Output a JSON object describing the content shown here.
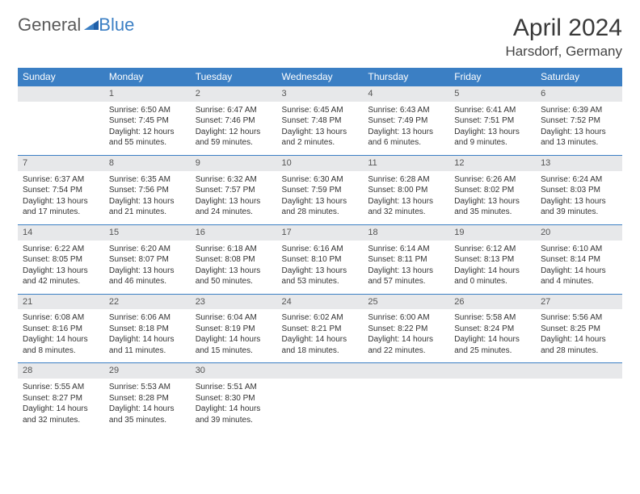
{
  "logo": {
    "part1": "General",
    "part2": "Blue"
  },
  "title": {
    "month": "April 2024",
    "location": "Harsdorf, Germany"
  },
  "colors": {
    "header_bg": "#3b7fc4",
    "daynum_bg": "#e7e8ea",
    "border": "#3b7fc4"
  },
  "weekdays": [
    "Sunday",
    "Monday",
    "Tuesday",
    "Wednesday",
    "Thursday",
    "Friday",
    "Saturday"
  ],
  "weeks": [
    [
      {
        "n": "",
        "lines": []
      },
      {
        "n": "1",
        "lines": [
          "Sunrise: 6:50 AM",
          "Sunset: 7:45 PM",
          "Daylight: 12 hours",
          "and 55 minutes."
        ]
      },
      {
        "n": "2",
        "lines": [
          "Sunrise: 6:47 AM",
          "Sunset: 7:46 PM",
          "Daylight: 12 hours",
          "and 59 minutes."
        ]
      },
      {
        "n": "3",
        "lines": [
          "Sunrise: 6:45 AM",
          "Sunset: 7:48 PM",
          "Daylight: 13 hours",
          "and 2 minutes."
        ]
      },
      {
        "n": "4",
        "lines": [
          "Sunrise: 6:43 AM",
          "Sunset: 7:49 PM",
          "Daylight: 13 hours",
          "and 6 minutes."
        ]
      },
      {
        "n": "5",
        "lines": [
          "Sunrise: 6:41 AM",
          "Sunset: 7:51 PM",
          "Daylight: 13 hours",
          "and 9 minutes."
        ]
      },
      {
        "n": "6",
        "lines": [
          "Sunrise: 6:39 AM",
          "Sunset: 7:52 PM",
          "Daylight: 13 hours",
          "and 13 minutes."
        ]
      }
    ],
    [
      {
        "n": "7",
        "lines": [
          "Sunrise: 6:37 AM",
          "Sunset: 7:54 PM",
          "Daylight: 13 hours",
          "and 17 minutes."
        ]
      },
      {
        "n": "8",
        "lines": [
          "Sunrise: 6:35 AM",
          "Sunset: 7:56 PM",
          "Daylight: 13 hours",
          "and 21 minutes."
        ]
      },
      {
        "n": "9",
        "lines": [
          "Sunrise: 6:32 AM",
          "Sunset: 7:57 PM",
          "Daylight: 13 hours",
          "and 24 minutes."
        ]
      },
      {
        "n": "10",
        "lines": [
          "Sunrise: 6:30 AM",
          "Sunset: 7:59 PM",
          "Daylight: 13 hours",
          "and 28 minutes."
        ]
      },
      {
        "n": "11",
        "lines": [
          "Sunrise: 6:28 AM",
          "Sunset: 8:00 PM",
          "Daylight: 13 hours",
          "and 32 minutes."
        ]
      },
      {
        "n": "12",
        "lines": [
          "Sunrise: 6:26 AM",
          "Sunset: 8:02 PM",
          "Daylight: 13 hours",
          "and 35 minutes."
        ]
      },
      {
        "n": "13",
        "lines": [
          "Sunrise: 6:24 AM",
          "Sunset: 8:03 PM",
          "Daylight: 13 hours",
          "and 39 minutes."
        ]
      }
    ],
    [
      {
        "n": "14",
        "lines": [
          "Sunrise: 6:22 AM",
          "Sunset: 8:05 PM",
          "Daylight: 13 hours",
          "and 42 minutes."
        ]
      },
      {
        "n": "15",
        "lines": [
          "Sunrise: 6:20 AM",
          "Sunset: 8:07 PM",
          "Daylight: 13 hours",
          "and 46 minutes."
        ]
      },
      {
        "n": "16",
        "lines": [
          "Sunrise: 6:18 AM",
          "Sunset: 8:08 PM",
          "Daylight: 13 hours",
          "and 50 minutes."
        ]
      },
      {
        "n": "17",
        "lines": [
          "Sunrise: 6:16 AM",
          "Sunset: 8:10 PM",
          "Daylight: 13 hours",
          "and 53 minutes."
        ]
      },
      {
        "n": "18",
        "lines": [
          "Sunrise: 6:14 AM",
          "Sunset: 8:11 PM",
          "Daylight: 13 hours",
          "and 57 minutes."
        ]
      },
      {
        "n": "19",
        "lines": [
          "Sunrise: 6:12 AM",
          "Sunset: 8:13 PM",
          "Daylight: 14 hours",
          "and 0 minutes."
        ]
      },
      {
        "n": "20",
        "lines": [
          "Sunrise: 6:10 AM",
          "Sunset: 8:14 PM",
          "Daylight: 14 hours",
          "and 4 minutes."
        ]
      }
    ],
    [
      {
        "n": "21",
        "lines": [
          "Sunrise: 6:08 AM",
          "Sunset: 8:16 PM",
          "Daylight: 14 hours",
          "and 8 minutes."
        ]
      },
      {
        "n": "22",
        "lines": [
          "Sunrise: 6:06 AM",
          "Sunset: 8:18 PM",
          "Daylight: 14 hours",
          "and 11 minutes."
        ]
      },
      {
        "n": "23",
        "lines": [
          "Sunrise: 6:04 AM",
          "Sunset: 8:19 PM",
          "Daylight: 14 hours",
          "and 15 minutes."
        ]
      },
      {
        "n": "24",
        "lines": [
          "Sunrise: 6:02 AM",
          "Sunset: 8:21 PM",
          "Daylight: 14 hours",
          "and 18 minutes."
        ]
      },
      {
        "n": "25",
        "lines": [
          "Sunrise: 6:00 AM",
          "Sunset: 8:22 PM",
          "Daylight: 14 hours",
          "and 22 minutes."
        ]
      },
      {
        "n": "26",
        "lines": [
          "Sunrise: 5:58 AM",
          "Sunset: 8:24 PM",
          "Daylight: 14 hours",
          "and 25 minutes."
        ]
      },
      {
        "n": "27",
        "lines": [
          "Sunrise: 5:56 AM",
          "Sunset: 8:25 PM",
          "Daylight: 14 hours",
          "and 28 minutes."
        ]
      }
    ],
    [
      {
        "n": "28",
        "lines": [
          "Sunrise: 5:55 AM",
          "Sunset: 8:27 PM",
          "Daylight: 14 hours",
          "and 32 minutes."
        ]
      },
      {
        "n": "29",
        "lines": [
          "Sunrise: 5:53 AM",
          "Sunset: 8:28 PM",
          "Daylight: 14 hours",
          "and 35 minutes."
        ]
      },
      {
        "n": "30",
        "lines": [
          "Sunrise: 5:51 AM",
          "Sunset: 8:30 PM",
          "Daylight: 14 hours",
          "and 39 minutes."
        ]
      },
      {
        "n": "",
        "lines": []
      },
      {
        "n": "",
        "lines": []
      },
      {
        "n": "",
        "lines": []
      },
      {
        "n": "",
        "lines": []
      }
    ]
  ]
}
